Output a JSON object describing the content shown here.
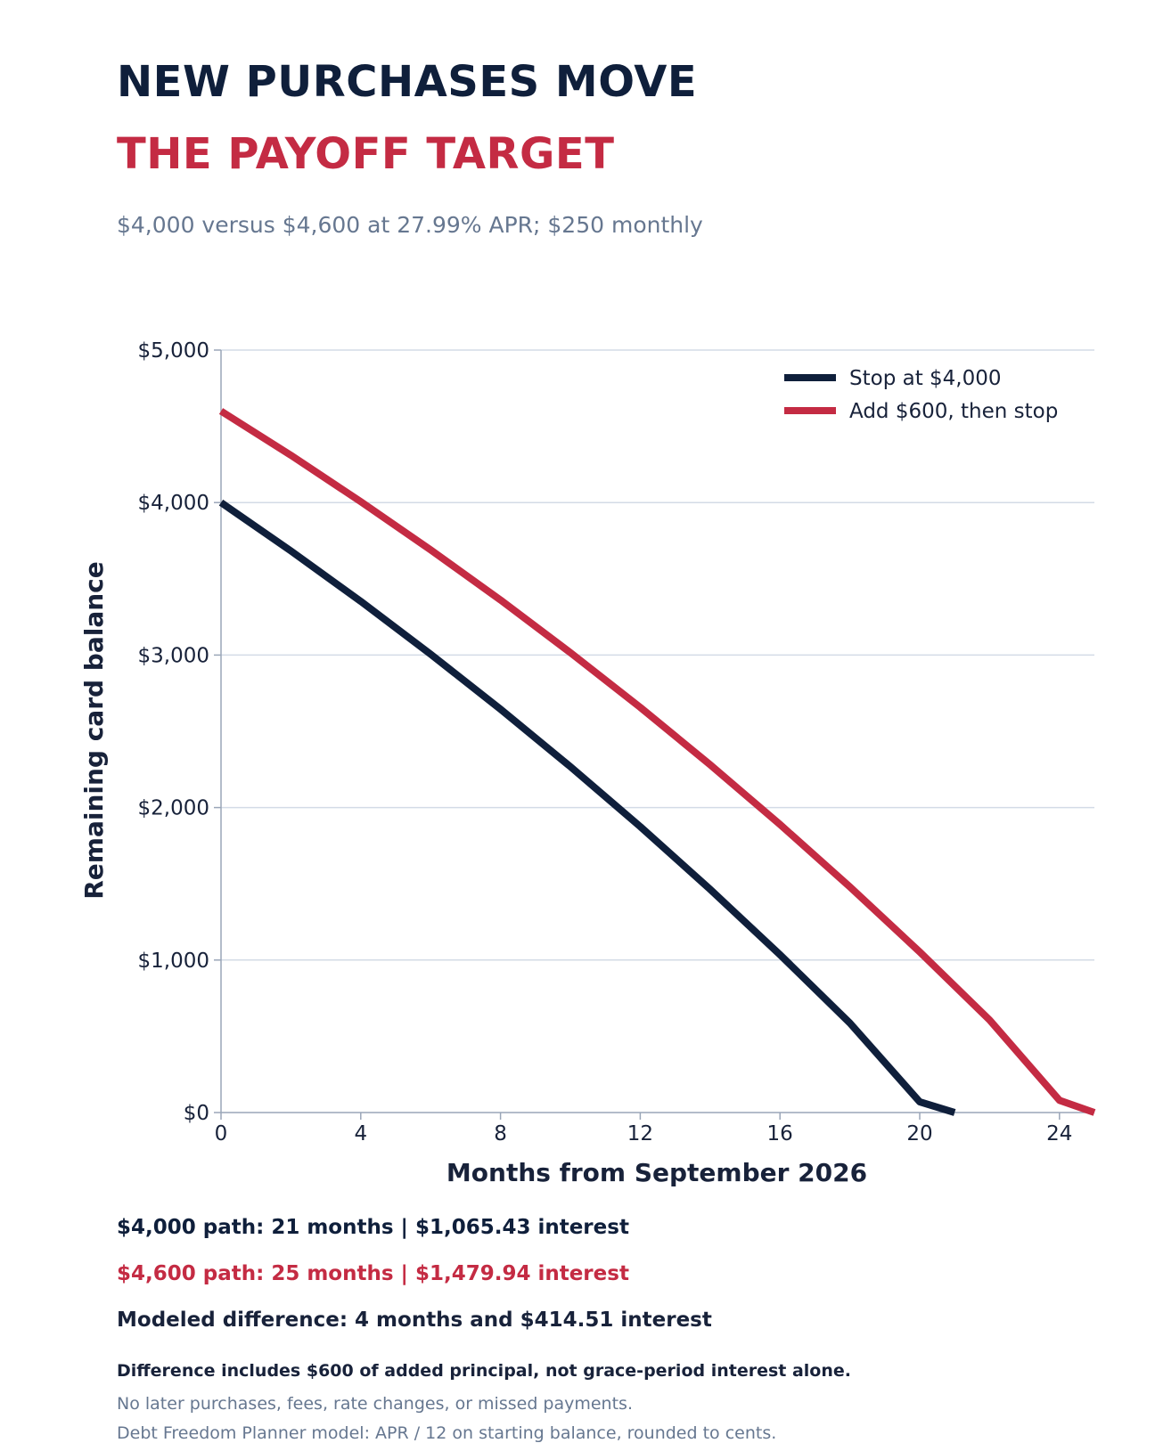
{
  "header": {
    "title_line1": "NEW PURCHASES MOVE",
    "title_line2": "THE PAYOFF TARGET",
    "subtitle": "$4,000 versus $4,600 at 27.99% APR; $250 monthly"
  },
  "colors": {
    "navy": "#0f1f3b",
    "red": "#c42b43",
    "grid": "#d3dbe6",
    "muted": "#667790"
  },
  "chart_data": {
    "type": "line",
    "title": "NEW PURCHASES MOVE THE PAYOFF TARGET",
    "xlabel": "Months from September 2026",
    "ylabel": "Remaining card balance",
    "xlim": [
      0,
      25
    ],
    "ylim": [
      0,
      5000
    ],
    "x_ticks": [
      0,
      4,
      8,
      12,
      16,
      20,
      24
    ],
    "x_tick_labels": [
      "0",
      "4",
      "8",
      "12",
      "16",
      "20",
      "24"
    ],
    "y_ticks": [
      0,
      1000,
      2000,
      3000,
      4000,
      5000
    ],
    "y_tick_labels": [
      "$0",
      "$1,000",
      "$2,000",
      "$3,000",
      "$4,000",
      "$5,000"
    ],
    "grid": "horizontal",
    "legend_position": "top-right",
    "series": [
      {
        "name": "Stop at $4,000",
        "color": "#0f1f3b",
        "x": [
          0,
          2,
          4,
          6,
          8,
          10,
          12,
          14,
          16,
          18,
          20,
          21
        ],
        "y": [
          4000,
          3683,
          3352,
          3006,
          2645,
          2268,
          1875,
          1464,
          1035,
          587,
          70,
          0
        ]
      },
      {
        "name": "Add $600, then stop",
        "color": "#c42b43",
        "x": [
          0,
          2,
          4,
          6,
          8,
          10,
          12,
          14,
          16,
          18,
          20,
          22,
          24,
          25
        ],
        "y": [
          4600,
          4310,
          4006,
          3690,
          3361,
          3016,
          2657,
          2281,
          1889,
          1480,
          1053,
          607,
          80,
          0
        ]
      }
    ]
  },
  "summary": {
    "line1": "$4,000 path: 21 months  |  $1,065.43 interest",
    "line2": "$4,600 path: 25 months  |  $1,479.94 interest",
    "line3": "Modeled difference: 4 months and $414.51 interest"
  },
  "notes": {
    "line1": "Difference includes $600 of added principal, not grace-period interest alone.",
    "line2": "No later purchases, fees, rate changes, or missed payments.",
    "line3": "Debt Freedom Planner model: APR / 12 on starting balance, rounded to cents."
  }
}
